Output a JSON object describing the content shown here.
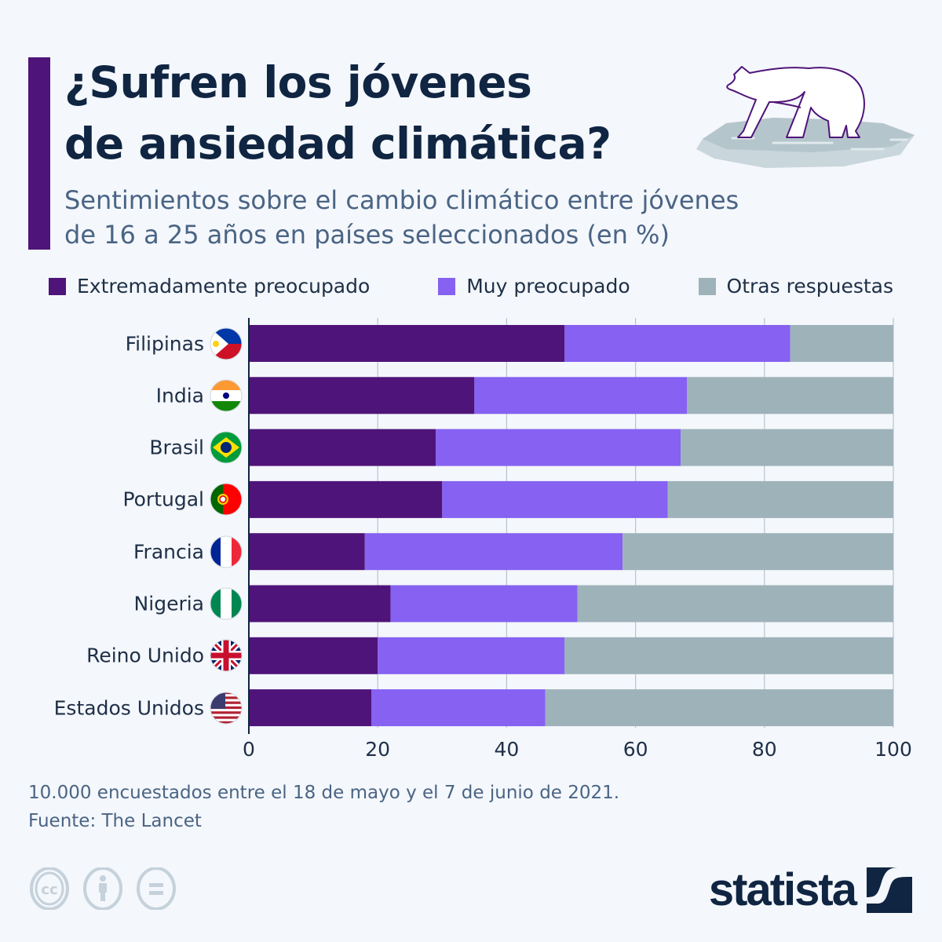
{
  "header": {
    "title_line1": "¿Sufren los jóvenes",
    "title_line2": "de ansiedad climática?",
    "subtitle_line1": "Sentimientos sobre el cambio climático entre jóvenes",
    "subtitle_line2": "de 16 a 25 años en países seleccionados (en %)",
    "illustration": "polar-bear-on-ice-floe"
  },
  "colors": {
    "accent": "#4f1479",
    "extremely": "#4f1479",
    "very": "#8661f2",
    "other": "#9eb2ba",
    "text": "#0f2542",
    "subtext": "#4a6484"
  },
  "chart_data": {
    "type": "bar",
    "orientation": "horizontal",
    "stacked": true,
    "title": "¿Sufren los jóvenes de ansiedad climática?",
    "subtitle": "Sentimientos sobre el cambio climático entre jóvenes de 16 a 25 años en países seleccionados (en %)",
    "categories": [
      "Filipinas",
      "India",
      "Brasil",
      "Portugal",
      "Francia",
      "Nigeria",
      "Reino Unido",
      "Estados Unidos"
    ],
    "category_icons": [
      "philippines-flag",
      "india-flag",
      "brazil-flag",
      "portugal-flag",
      "france-flag",
      "nigeria-flag",
      "uk-flag",
      "usa-flag"
    ],
    "series": [
      {
        "name": "Extremadamente preocupado",
        "color": "#4f1479",
        "values": [
          49,
          35,
          29,
          30,
          18,
          22,
          20,
          19
        ]
      },
      {
        "name": "Muy preocupado",
        "color": "#8661f2",
        "values": [
          35,
          33,
          38,
          35,
          40,
          29,
          29,
          27
        ]
      },
      {
        "name": "Otras respuestas",
        "color": "#9eb2ba",
        "values": [
          16,
          32,
          33,
          35,
          42,
          49,
          51,
          54
        ]
      }
    ],
    "xlim": [
      0,
      100
    ],
    "xticks": [
      "0",
      "20",
      "40",
      "60",
      "80",
      "100"
    ],
    "xlabel": "",
    "ylabel": "",
    "grid": true,
    "legend": "top"
  },
  "footer": {
    "note": "10.000 encuestados entre el 18 de mayo y el 7 de junio de 2021.",
    "source": "Fuente: The Lancet",
    "brand": "statista"
  }
}
